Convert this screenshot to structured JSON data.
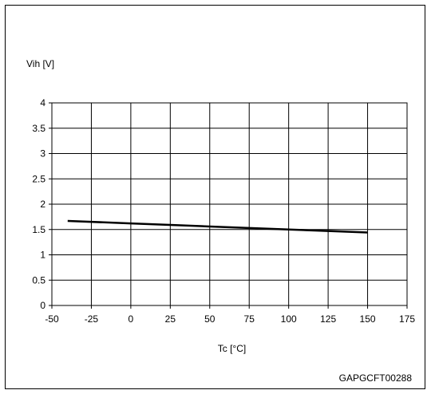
{
  "chart_data": {
    "type": "line",
    "ylabel": "Vih [V]",
    "xlabel": "Tc [°C]",
    "xlim": [
      -50,
      175
    ],
    "ylim": [
      0,
      4
    ],
    "x_ticks": [
      -50,
      -25,
      0,
      25,
      50,
      75,
      100,
      125,
      150,
      175
    ],
    "y_ticks": [
      0,
      0.5,
      1,
      1.5,
      2,
      2.5,
      3,
      3.5,
      4
    ],
    "grid": true,
    "series": [
      {
        "x": [
          -40,
          0,
          25,
          50,
          75,
          100,
          125,
          150
        ],
        "y": [
          1.67,
          1.62,
          1.59,
          1.56,
          1.53,
          1.5,
          1.47,
          1.44
        ],
        "color": "#000000"
      }
    ]
  },
  "figure_code": "GAPGCFT00288"
}
